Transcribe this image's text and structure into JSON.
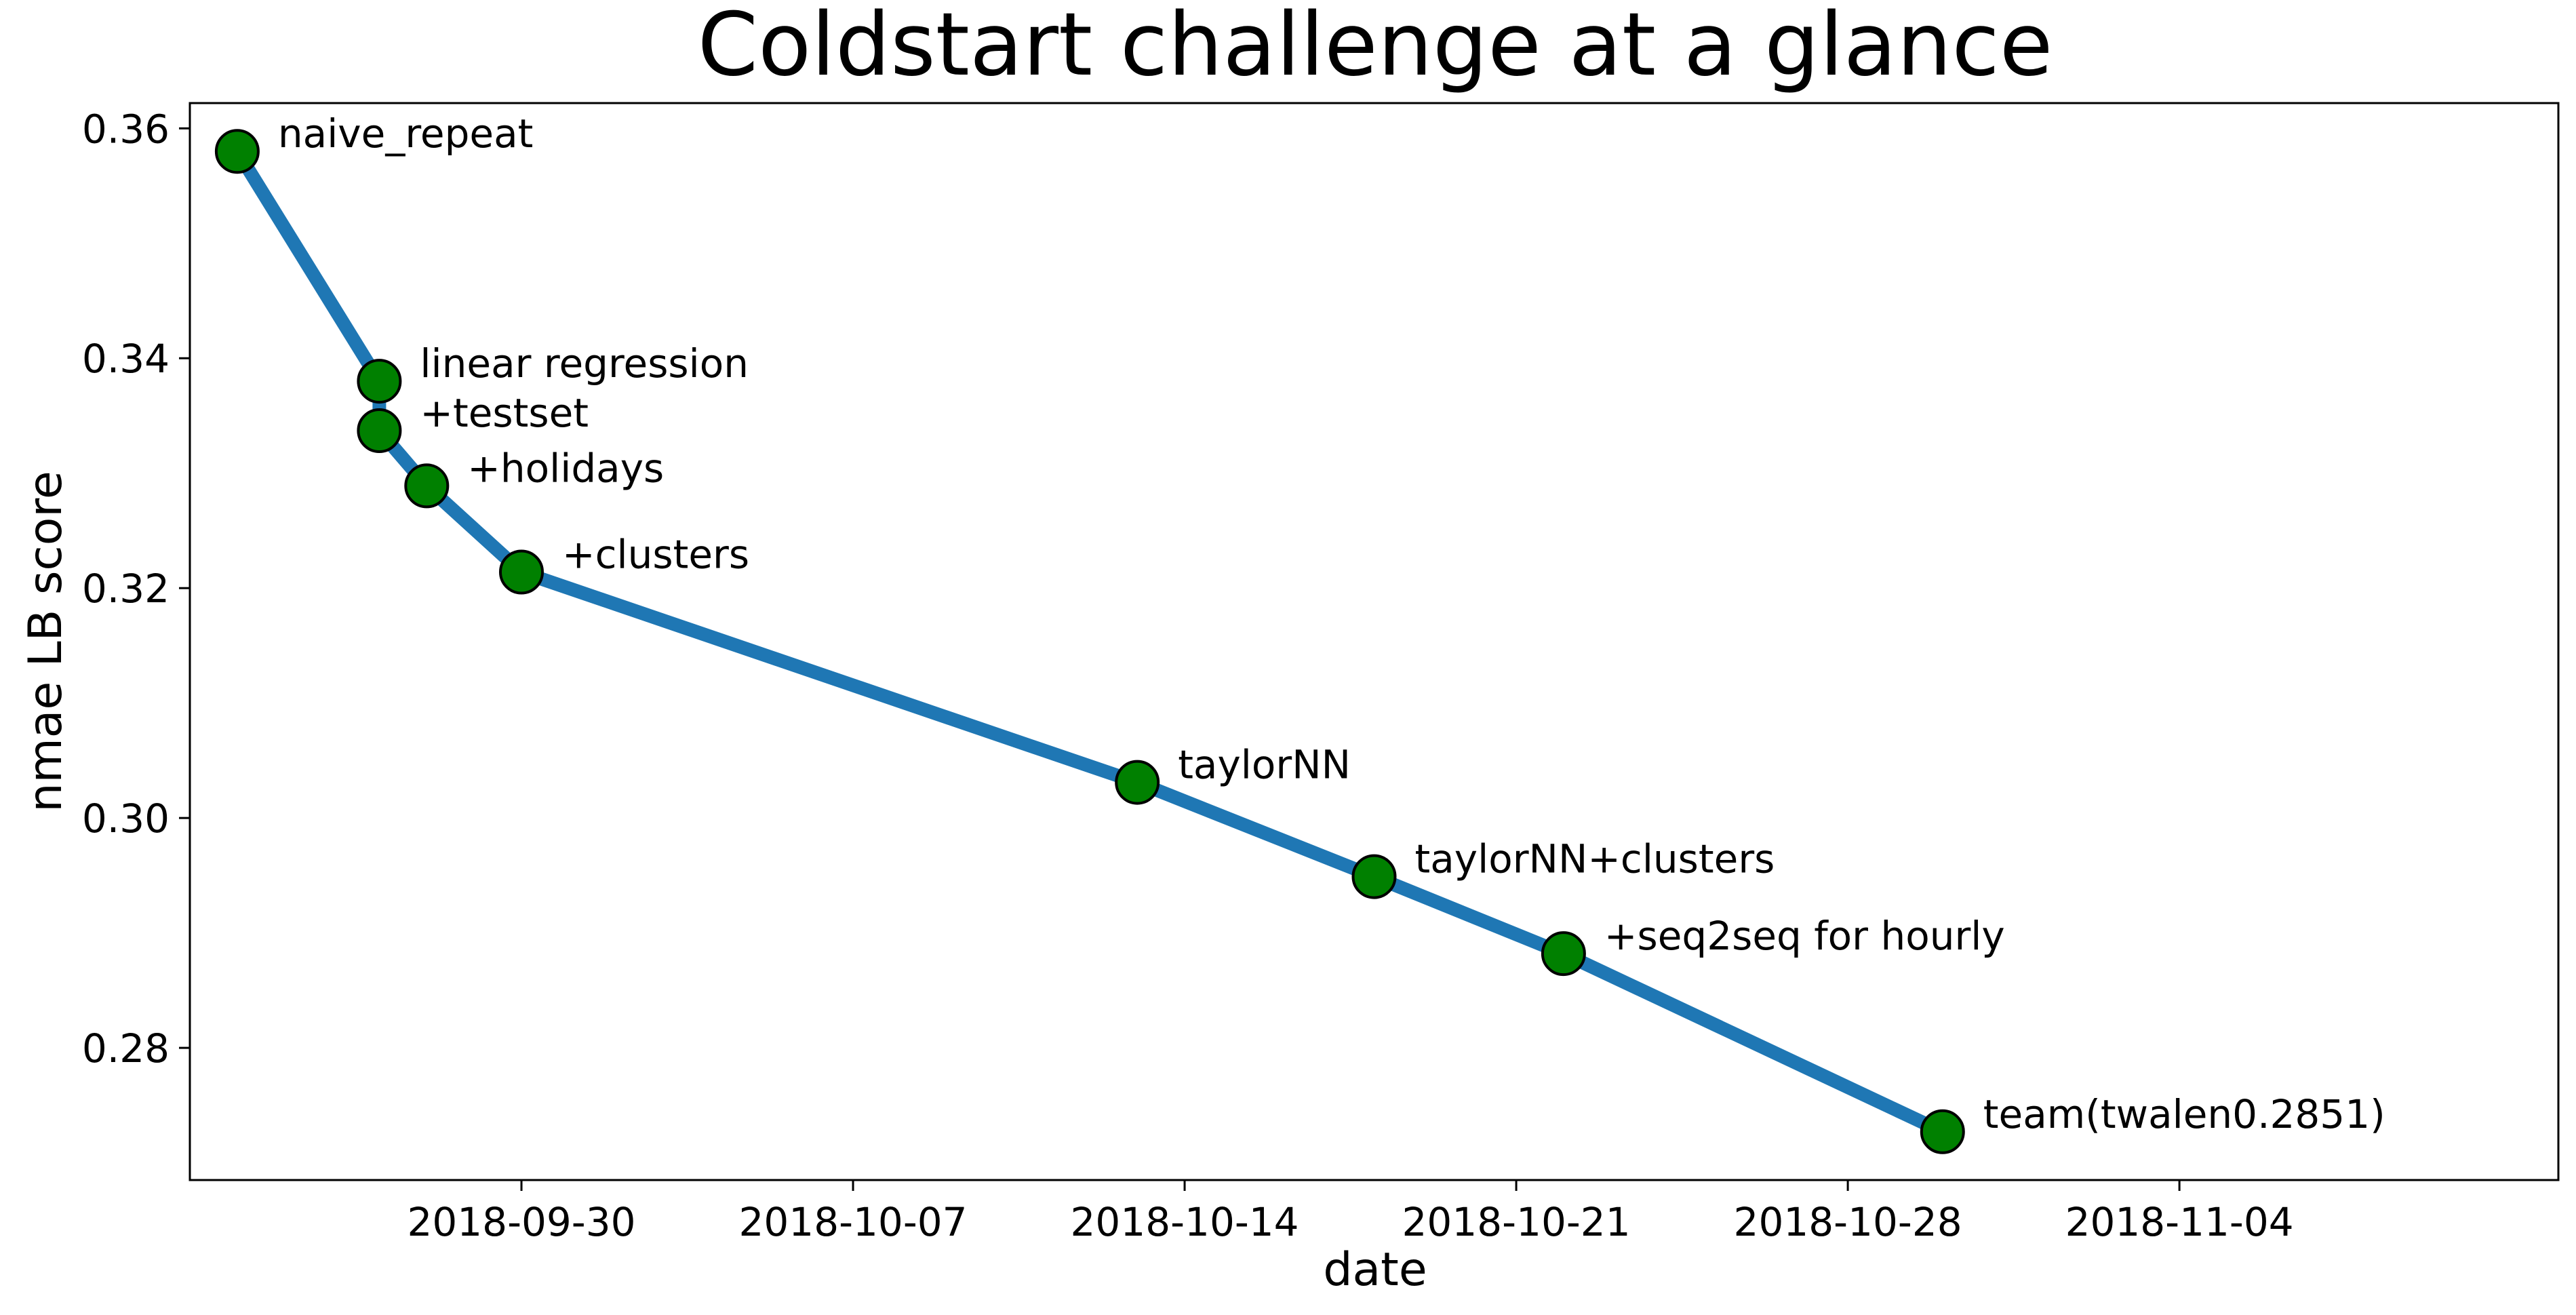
{
  "chart_data": {
    "type": "line",
    "title": "Coldstart challenge at a glance",
    "xlabel": "date",
    "ylabel": "nmae LB score",
    "x_is_date": true,
    "xlim": [
      "2018-09-23",
      "2018-11-12"
    ],
    "ylim": [
      0.2685,
      0.3622
    ],
    "xticks": [
      "2018-09-30",
      "2018-10-07",
      "2018-10-14",
      "2018-10-21",
      "2018-10-28",
      "2018-11-04"
    ],
    "yticks": [
      "0.28",
      "0.30",
      "0.32",
      "0.34",
      "0.36"
    ],
    "grid": false,
    "legend": "none",
    "line_color": "#1f77b4",
    "marker_color": "#008000",
    "series": [
      {
        "x": [
          "2018-09-24",
          "2018-09-27",
          "2018-09-27",
          "2018-09-28",
          "2018-09-30",
          "2018-10-13",
          "2018-10-18",
          "2018-10-22",
          "2018-10-30"
        ],
        "y": [
          0.358,
          0.338,
          0.3337,
          0.3289,
          0.3214,
          0.3031,
          0.2949,
          0.2882,
          0.2727
        ],
        "labels": [
          "naive_repeat",
          "linear regression",
          "+testset",
          "+holidays",
          "+clusters",
          "taylorNN",
          "taylorNN+clusters",
          "+seq2seq for hourly",
          "team(twalen0.2851)"
        ]
      }
    ]
  }
}
